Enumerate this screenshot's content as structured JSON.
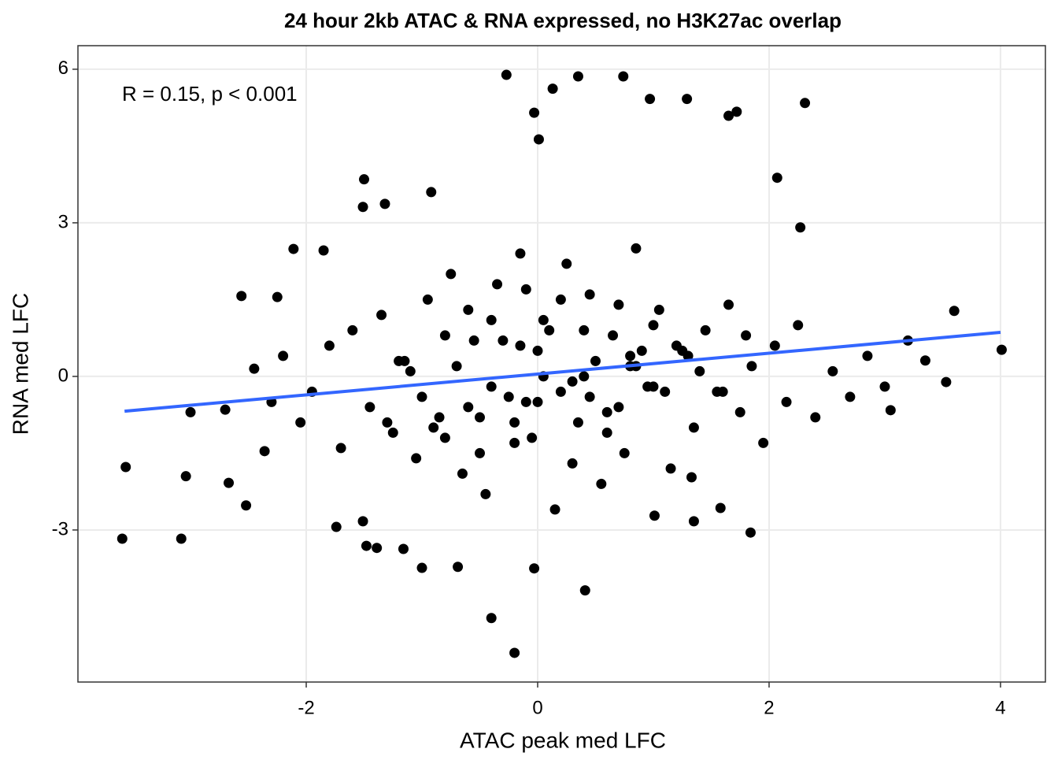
{
  "chart_data": {
    "type": "scatter",
    "title": "24 hour 2kb ATAC & RNA expressed, no H3K27ac overlap",
    "xlabel": "ATAC peak med LFC",
    "ylabel": "RNA med LFC",
    "annotation": "R = 0.15, p < 0.001",
    "color": "#000000",
    "x": [
      -3.59,
      -3.56,
      -3.08,
      -3.04,
      -2.67,
      -2.52,
      -2.56,
      -2.25,
      -2.11,
      -1.85,
      -1.5,
      -1.51,
      -1.32,
      -0.92,
      -0.27,
      0.13,
      0.35,
      0.74,
      0.97,
      1.29,
      1.72,
      1.65,
      2.31,
      -0.03,
      0.01,
      2.07,
      2.27,
      3.6,
      4.01,
      3.53,
      3.35,
      3.05,
      1.84,
      1.35,
      1.58,
      0.41,
      -0.2,
      -0.4,
      -0.03,
      -1.0,
      -0.69,
      -1.48,
      -1.39,
      -1.16,
      -1.74,
      -1.51,
      -2.36,
      1.33,
      1.01,
      -3.0,
      -2.7,
      -2.45,
      -2.3,
      -2.2,
      -2.05,
      -1.95,
      -1.8,
      -1.7,
      -1.6,
      -1.45,
      -1.35,
      -1.25,
      -1.15,
      -1.05,
      -0.95,
      -0.85,
      -0.75,
      -0.65,
      -0.55,
      -0.45,
      -0.35,
      -0.25,
      -0.15,
      -0.05,
      0.05,
      0.15,
      0.25,
      0.35,
      0.45,
      0.55,
      0.65,
      0.75,
      0.85,
      0.95,
      1.05,
      1.15,
      1.25,
      1.35,
      1.45,
      1.55,
      1.65,
      1.75,
      1.85,
      1.95,
      2.05,
      2.15,
      2.25,
      2.4,
      2.55,
      2.7,
      2.85,
      3.0,
      3.2,
      -1.2,
      -1.0,
      -0.8,
      -0.6,
      -0.4,
      -0.2,
      0.0,
      0.2,
      0.4,
      0.6,
      0.8,
      1.0,
      1.2,
      1.4,
      -0.9,
      -0.7,
      -0.5,
      -0.3,
      -0.1,
      0.1,
      0.3,
      0.5,
      0.7,
      0.9,
      1.1,
      -0.6,
      -0.2,
      0.2,
      0.6,
      1.0,
      -0.4,
      0.0,
      0.4,
      0.8,
      -0.5,
      -0.1,
      0.3,
      0.7,
      -1.1,
      1.3,
      -0.8,
      1.6,
      -1.3,
      1.8,
      0.05,
      -0.15,
      0.45,
      0.85
    ],
    "y": [
      -3.17,
      -1.77,
      -3.17,
      -1.95,
      -2.08,
      -2.52,
      1.57,
      1.55,
      2.49,
      2.46,
      3.85,
      3.31,
      3.37,
      3.6,
      5.89,
      5.62,
      5.86,
      5.86,
      5.42,
      5.42,
      5.17,
      5.09,
      5.34,
      5.15,
      4.63,
      3.88,
      2.91,
      1.28,
      0.52,
      -0.11,
      0.31,
      -0.66,
      -3.05,
      -2.83,
      -2.57,
      -4.18,
      -5.4,
      -4.72,
      -3.75,
      -3.74,
      -3.72,
      -3.31,
      -3.35,
      -3.37,
      -2.94,
      -2.83,
      -1.46,
      -1.97,
      -2.72,
      -0.7,
      -0.65,
      0.15,
      -0.5,
      0.4,
      -0.9,
      -0.3,
      0.6,
      -1.4,
      0.9,
      -0.6,
      1.2,
      -1.1,
      0.3,
      -1.6,
      1.5,
      -0.8,
      2.0,
      -1.9,
      0.7,
      -2.3,
      1.8,
      -0.4,
      2.4,
      -1.2,
      1.1,
      -2.6,
      2.2,
      -0.9,
      1.6,
      -2.1,
      0.8,
      -1.5,
      2.5,
      -0.2,
      1.3,
      -1.8,
      0.5,
      -1.0,
      0.9,
      -0.3,
      1.4,
      -0.7,
      0.2,
      -1.3,
      0.6,
      -0.5,
      1.0,
      -0.8,
      0.1,
      -0.4,
      0.4,
      -0.2,
      0.7,
      0.3,
      -0.4,
      0.8,
      -0.6,
      1.1,
      -0.9,
      0.5,
      -0.3,
      0.9,
      -0.7,
      0.4,
      -0.2,
      0.6,
      0.1,
      -1.0,
      0.2,
      -0.8,
      0.7,
      -0.5,
      0.9,
      -0.1,
      0.3,
      -0.6,
      0.5,
      -0.3,
      1.3,
      -1.3,
      1.5,
      -1.1,
      1.0,
      -0.2,
      -0.5,
      0.0,
      0.2,
      -1.5,
      1.7,
      -1.7,
      1.4,
      0.1,
      0.4,
      -1.2,
      -0.3,
      -0.9,
      0.8,
      0.0,
      0.6,
      -0.4,
      0.2
    ],
    "fit": {
      "color": "#3366ff",
      "x": [
        -3.57,
        4.0
      ],
      "y": [
        -0.68,
        0.86
      ]
    },
    "xlim": [
      -3.973,
      4.388
    ],
    "ylim": [
      -5.97,
      6.46
    ],
    "xticks": [
      -2,
      0,
      2,
      4
    ],
    "yticks": [
      -3,
      0,
      3,
      6
    ],
    "grid": true
  }
}
